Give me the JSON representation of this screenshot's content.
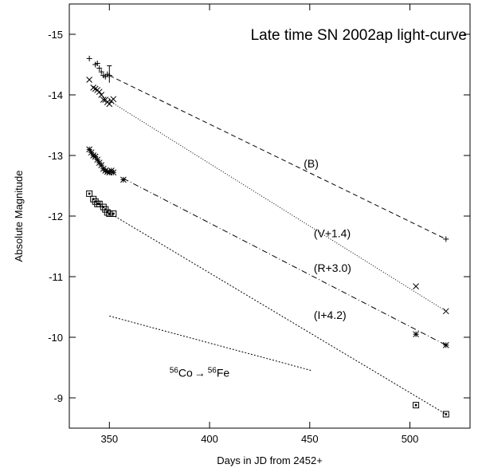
{
  "chart_data": {
    "type": "scatter",
    "title": "Late time SN 2002ap light-curve",
    "xlabel": "Days in JD from 2452+",
    "ylabel": "Absolute Magnitude",
    "xlim": [
      330,
      530
    ],
    "ylim": [
      -8.5,
      -15.5
    ],
    "y_inverted": true,
    "x_ticks": [
      350,
      400,
      450,
      500
    ],
    "y_ticks": [
      -9,
      -10,
      -11,
      -12,
      -13,
      -14,
      -15
    ],
    "grid": false,
    "series": [
      {
        "name": "(B)",
        "marker": "plus",
        "line_style": "dashed",
        "label_at": [
          447,
          -12.8
        ],
        "points": [
          [
            340,
            -14.6
          ],
          [
            343,
            -14.5
          ],
          [
            344,
            -14.52
          ],
          [
            345,
            -14.44
          ],
          [
            346,
            -14.38
          ],
          [
            347,
            -14.32
          ],
          [
            348,
            -14.3
          ],
          [
            349,
            -14.34
          ],
          [
            350,
            -14.32
          ],
          [
            518,
            -11.62
          ]
        ],
        "fit": [
          [
            350,
            -14.32
          ],
          [
            518,
            -11.62
          ]
        ]
      },
      {
        "name": "(V+1.4)",
        "marker": "x",
        "line_style": "dotted",
        "label_at": [
          452,
          -11.65
        ],
        "points": [
          [
            340,
            -14.25
          ],
          [
            342,
            -14.12
          ],
          [
            343,
            -14.1
          ],
          [
            344,
            -14.08
          ],
          [
            345,
            -14.05
          ],
          [
            346,
            -14.0
          ],
          [
            347,
            -13.92
          ],
          [
            348,
            -13.92
          ],
          [
            349,
            -13.88
          ],
          [
            350,
            -13.85
          ],
          [
            351,
            -13.9
          ],
          [
            352,
            -13.93
          ],
          [
            503,
            -10.84
          ],
          [
            518,
            -10.43
          ]
        ],
        "fit": [
          [
            350,
            -13.9
          ],
          [
            518,
            -10.43
          ]
        ]
      },
      {
        "name": "(R+3.0)",
        "marker": "star",
        "line_style": "dashdot",
        "label_at": [
          452,
          -11.08
        ],
        "points": [
          [
            340,
            -13.1
          ],
          [
            341,
            -13.05
          ],
          [
            342,
            -13.0
          ],
          [
            343,
            -12.98
          ],
          [
            344,
            -12.93
          ],
          [
            345,
            -12.88
          ],
          [
            346,
            -12.84
          ],
          [
            347,
            -12.78
          ],
          [
            348,
            -12.75
          ],
          [
            349,
            -12.73
          ],
          [
            350,
            -12.72
          ],
          [
            351,
            -12.75
          ],
          [
            352,
            -12.72
          ],
          [
            357,
            -12.6
          ],
          [
            503,
            -10.05
          ],
          [
            518,
            -9.87
          ]
        ],
        "fit": [
          [
            357,
            -12.62
          ],
          [
            518,
            -9.87
          ]
        ]
      },
      {
        "name": "(I+4.2)",
        "marker": "square",
        "line_style": "dotted-fine",
        "label_at": [
          452,
          -10.3
        ],
        "points": [
          [
            340,
            -12.37
          ],
          [
            342,
            -12.28
          ],
          [
            343,
            -12.24
          ],
          [
            344,
            -12.2
          ],
          [
            345,
            -12.2
          ],
          [
            347,
            -12.15
          ],
          [
            348,
            -12.11
          ],
          [
            349,
            -12.06
          ],
          [
            350,
            -12.04
          ],
          [
            352,
            -12.04
          ],
          [
            503,
            -8.88
          ],
          [
            518,
            -8.73
          ]
        ],
        "fit": [
          [
            350,
            -12.05
          ],
          [
            518,
            -8.73
          ]
        ]
      }
    ],
    "reference_line": {
      "name": "56Co -> 56Fe",
      "points": [
        [
          350,
          -10.35
        ],
        [
          451,
          -9.45
        ]
      ]
    },
    "annotation": {
      "co_mass": "56",
      "co_symbol": "Co",
      "arrow": "→",
      "fe_mass": "56",
      "fe_symbol": "Fe",
      "at": [
        395,
        -9.35
      ]
    }
  }
}
